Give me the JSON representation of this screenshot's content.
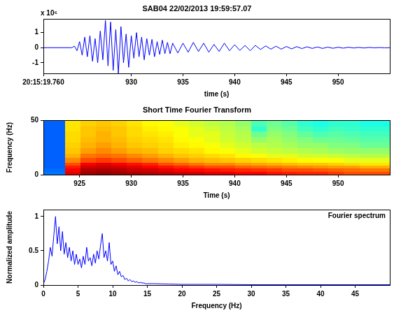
{
  "chart_data": [
    {
      "type": "line",
      "title": "SAB04 22/02/2013 19:59:57.07",
      "x_label": "time (s)",
      "annotations": [
        "x 10⁶"
      ],
      "x": [
        921.5,
        924.25,
        924.5,
        924.75,
        925,
        925.25,
        925.5,
        925.75,
        926,
        926.25,
        926.5,
        926.75,
        927,
        927.25,
        927.5,
        927.75,
        928,
        928.25,
        928.5,
        928.75,
        929,
        929.25,
        929.5,
        929.75,
        930,
        930.25,
        930.5,
        930.75,
        931,
        931.25,
        931.5,
        931.75,
        932,
        932.25,
        932.5,
        932.75,
        933,
        933.25,
        933.5,
        933.75,
        934,
        934.5,
        935,
        935.5,
        936,
        936.5,
        937,
        937.5,
        938,
        938.5,
        939,
        939.5,
        940,
        940.5,
        941,
        941.5,
        942,
        942.5,
        943,
        943.5,
        944,
        944.5,
        945,
        945.5,
        946,
        946.5,
        947,
        947.5,
        948,
        948.5,
        949,
        949.5,
        950,
        950.5,
        951,
        951.5,
        952,
        952.5,
        953,
        953.5,
        954,
        954.5,
        955
      ],
      "values": [
        0,
        0,
        0.1,
        -0.2,
        0.4,
        -0.5,
        0.7,
        -0.6,
        0.8,
        -0.9,
        0.6,
        -1,
        1.1,
        -0.8,
        1.8,
        -1.2,
        1.7,
        -1.5,
        1.2,
        -1.7,
        1.4,
        -1,
        0.9,
        -1.3,
        0.8,
        -0.7,
        1,
        -0.6,
        0.7,
        -0.8,
        0.6,
        -0.5,
        0.55,
        -0.6,
        0.4,
        -0.45,
        0.5,
        -0.4,
        0.35,
        -0.4,
        0.3,
        -0.35,
        0.3,
        -0.3,
        0.35,
        -0.25,
        0.3,
        -0.3,
        0.22,
        -0.25,
        0.3,
        -0.2,
        0.2,
        -0.18,
        0.15,
        -0.2,
        0.15,
        -0.12,
        0.12,
        -0.1,
        0.1,
        -0.1,
        0.08,
        -0.08,
        0.07,
        -0.06,
        0.06,
        -0.05,
        0.05,
        -0.05,
        0.04,
        -0.04,
        0.03,
        -0.03,
        0.03,
        -0.02,
        0.02,
        -0.02,
        0.02,
        -0.01,
        0.01,
        -0.01,
        0
      ],
      "color": "#0000ff",
      "xlim": [
        921.5,
        955
      ],
      "xticks": [
        {
          "value": 921.5,
          "label": "20:15:19.760"
        },
        930,
        935,
        940,
        945,
        950
      ],
      "ylim": [
        -1.7,
        1.9
      ],
      "yticks": [
        -1,
        0,
        1
      ],
      "grid": false
    },
    {
      "type": "heatmap",
      "title": "Short Time Fourier Transform",
      "x_label": "Time (s)",
      "y_label": "Frequency (Hz)",
      "x_edges": [
        921.5,
        923.6,
        925.1,
        926.6,
        928.1,
        929.6,
        931.1,
        932.6,
        934.1,
        935.6,
        937.1,
        938.6,
        940.1,
        941.6,
        943.1,
        944.6,
        946.1,
        947.6,
        949.1,
        950.6,
        952.1,
        955
      ],
      "y_edges": [
        0,
        3,
        6,
        9,
        12,
        16,
        20,
        25,
        30,
        35,
        40,
        45,
        50
      ],
      "cells": [
        [
          0.24,
          0.9,
          0.97,
          0.98,
          0.97,
          0.96,
          0.95,
          0.94,
          0.93,
          0.92,
          0.9,
          0.9,
          0.88,
          0.88,
          0.86,
          0.85,
          0.84,
          0.84,
          0.82,
          0.8,
          0.8
        ],
        [
          0.23,
          0.88,
          0.95,
          0.96,
          0.95,
          0.93,
          0.92,
          0.9,
          0.88,
          0.87,
          0.86,
          0.85,
          0.84,
          0.83,
          0.82,
          0.8,
          0.8,
          0.79,
          0.78,
          0.77,
          0.76
        ],
        [
          0.22,
          0.85,
          0.92,
          0.93,
          0.92,
          0.9,
          0.88,
          0.86,
          0.84,
          0.82,
          0.8,
          0.8,
          0.78,
          0.77,
          0.76,
          0.75,
          0.74,
          0.73,
          0.72,
          0.72,
          0.7
        ],
        [
          0.22,
          0.8,
          0.88,
          0.9,
          0.88,
          0.86,
          0.84,
          0.8,
          0.78,
          0.76,
          0.74,
          0.74,
          0.72,
          0.71,
          0.7,
          0.69,
          0.68,
          0.68,
          0.67,
          0.66,
          0.65
        ],
        [
          0.22,
          0.74,
          0.8,
          0.82,
          0.8,
          0.78,
          0.76,
          0.74,
          0.72,
          0.7,
          0.69,
          0.68,
          0.67,
          0.66,
          0.65,
          0.64,
          0.63,
          0.62,
          0.62,
          0.6,
          0.6
        ],
        [
          0.22,
          0.7,
          0.76,
          0.77,
          0.76,
          0.74,
          0.72,
          0.7,
          0.68,
          0.67,
          0.66,
          0.65,
          0.63,
          0.62,
          0.6,
          0.6,
          0.58,
          0.58,
          0.57,
          0.56,
          0.55
        ],
        [
          0.22,
          0.68,
          0.72,
          0.74,
          0.72,
          0.7,
          0.69,
          0.67,
          0.66,
          0.65,
          0.63,
          0.62,
          0.6,
          0.58,
          0.57,
          0.56,
          0.55,
          0.54,
          0.53,
          0.52,
          0.52
        ],
        [
          0.22,
          0.67,
          0.7,
          0.72,
          0.7,
          0.68,
          0.67,
          0.66,
          0.64,
          0.63,
          0.62,
          0.6,
          0.58,
          0.56,
          0.55,
          0.54,
          0.52,
          0.52,
          0.5,
          0.5,
          0.48
        ],
        [
          0.22,
          0.66,
          0.69,
          0.7,
          0.69,
          0.67,
          0.66,
          0.65,
          0.63,
          0.62,
          0.6,
          0.58,
          0.56,
          0.52,
          0.54,
          0.52,
          0.5,
          0.48,
          0.48,
          0.47,
          0.46
        ],
        [
          0.22,
          0.66,
          0.68,
          0.7,
          0.68,
          0.66,
          0.65,
          0.64,
          0.62,
          0.6,
          0.6,
          0.57,
          0.55,
          0.48,
          0.52,
          0.5,
          0.47,
          0.45,
          0.46,
          0.45,
          0.44
        ],
        [
          0.22,
          0.65,
          0.68,
          0.69,
          0.68,
          0.66,
          0.64,
          0.63,
          0.62,
          0.6,
          0.58,
          0.56,
          0.54,
          0.42,
          0.5,
          0.48,
          0.44,
          0.42,
          0.44,
          0.43,
          0.42
        ],
        [
          0.22,
          0.65,
          0.67,
          0.68,
          0.67,
          0.65,
          0.63,
          0.62,
          0.6,
          0.58,
          0.56,
          0.55,
          0.52,
          0.45,
          0.48,
          0.46,
          0.42,
          0.4,
          0.42,
          0.42,
          0.4
        ]
      ],
      "zlim": [
        0,
        1
      ],
      "color": "jet",
      "xlim": [
        921.5,
        955
      ],
      "xticks": [
        925,
        930,
        935,
        940,
        945,
        950
      ],
      "ylim": [
        0,
        50
      ],
      "yticks": [
        0,
        50
      ],
      "grid": false
    },
    {
      "type": "line",
      "x_label": "Frequency (Hz)",
      "y_label": "Normalized amplitude",
      "annotations": [
        "Fourier spectrum"
      ],
      "x": [
        0,
        0.25,
        0.5,
        0.75,
        1,
        1.25,
        1.5,
        1.75,
        2,
        2.25,
        2.5,
        2.75,
        3,
        3.25,
        3.5,
        3.75,
        4,
        4.25,
        4.5,
        4.75,
        5,
        5.25,
        5.5,
        5.75,
        6,
        6.25,
        6.5,
        6.75,
        7,
        7.25,
        7.5,
        7.75,
        8,
        8.25,
        8.5,
        8.75,
        9,
        9.25,
        9.5,
        9.75,
        10,
        10.25,
        10.5,
        10.75,
        11,
        11.25,
        11.5,
        11.75,
        12,
        12.25,
        12.5,
        12.75,
        13,
        13.25,
        13.5,
        13.75,
        14,
        14.25,
        14.5,
        14.75,
        15,
        16,
        18,
        20,
        25,
        30,
        35,
        40,
        45,
        50
      ],
      "values": [
        0.02,
        0.08,
        0.2,
        0.35,
        0.55,
        0.42,
        0.72,
        1,
        0.6,
        0.85,
        0.5,
        0.78,
        0.45,
        0.62,
        0.4,
        0.55,
        0.35,
        0.5,
        0.3,
        0.45,
        0.3,
        0.38,
        0.25,
        0.42,
        0.3,
        0.55,
        0.35,
        0.4,
        0.28,
        0.45,
        0.32,
        0.5,
        0.38,
        0.58,
        0.75,
        0.4,
        0.5,
        0.35,
        0.62,
        0.3,
        0.35,
        0.2,
        0.28,
        0.15,
        0.2,
        0.12,
        0.14,
        0.08,
        0.1,
        0.06,
        0.08,
        0.05,
        0.06,
        0.04,
        0.05,
        0.03,
        0.04,
        0.03,
        0.03,
        0.02,
        0.02,
        0.02,
        0.015,
        0.01,
        0.01,
        0.005,
        0.005,
        0.005,
        0.005,
        0.005
      ],
      "color": "#0000ff",
      "xlim": [
        0,
        50
      ],
      "xticks": [
        0,
        5,
        10,
        15,
        20,
        25,
        30,
        35,
        40,
        45
      ],
      "ylim": [
        0,
        1.1
      ],
      "yticks": [
        0,
        0.5,
        1
      ],
      "grid": false
    }
  ]
}
